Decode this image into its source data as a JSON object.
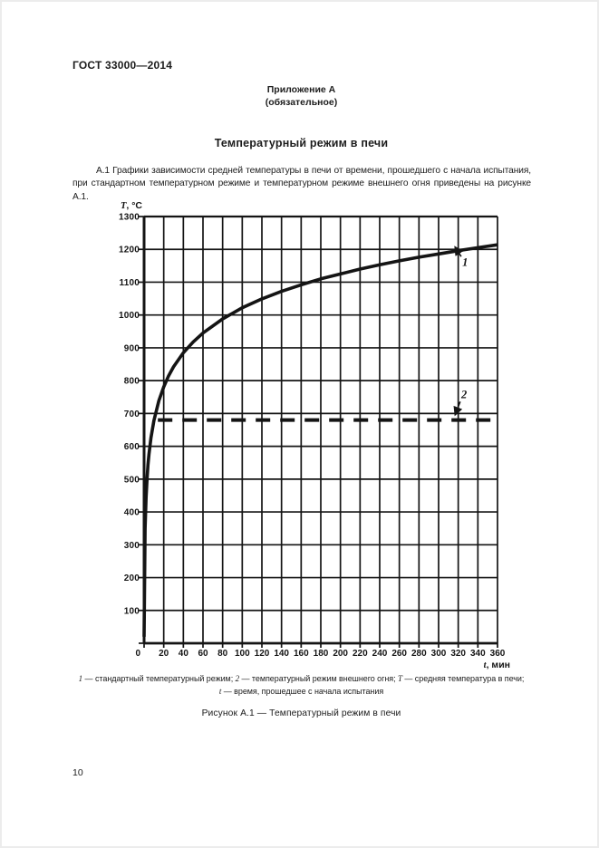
{
  "page": {
    "header": "ГОСТ 33000—2014",
    "annex_title": "Приложение А",
    "annex_subtitle": "(обязательное)",
    "section_title": "Температурный режим в печи",
    "paragraph": "А.1  Графики зависимости средней температуры в печи от времени, прошедшего с начала испытания, при стандартном температурном режиме и температурном режиме внешнего огня приведены на рисунке А.1.",
    "page_number": "10"
  },
  "figure": {
    "legend_line1": [
      {
        "t": "1",
        "i": true
      },
      {
        "t": " — стандартный температурный режим; ",
        "i": false
      },
      {
        "t": "2",
        "i": true
      },
      {
        "t": " — температурный режим внешнего огня; ",
        "i": false
      },
      {
        "t": "T",
        "i": true
      },
      {
        "t": " — средняя температура в печи;",
        "i": false
      }
    ],
    "legend_line2": [
      {
        "t": "t",
        "i": true
      },
      {
        "t": " — время, прошедшее с начала испытания",
        "i": false
      }
    ],
    "caption": "Рисунок А.1 — Температурный режим в печи"
  },
  "chart_data": {
    "type": "line",
    "title": "Температурный режим в печи",
    "xlabel": "t, мин",
    "ylabel": "T, °C",
    "xlim": [
      0,
      360
    ],
    "ylim": [
      0,
      1300
    ],
    "x_ticks": [
      0,
      20,
      40,
      60,
      80,
      100,
      120,
      140,
      160,
      180,
      200,
      220,
      240,
      260,
      280,
      300,
      320,
      340,
      360
    ],
    "y_ticks": [
      0,
      100,
      200,
      300,
      400,
      500,
      600,
      700,
      800,
      900,
      1000,
      1100,
      1200,
      1300
    ],
    "grid": true,
    "legend_position": "caption-below",
    "line_color": "#141414",
    "series": [
      {
        "id": "1",
        "name": "стандартный температурный режим",
        "style": "solid",
        "points": [
          [
            0,
            20
          ],
          [
            1,
            349
          ],
          [
            2,
            444
          ],
          [
            3,
            502
          ],
          [
            4,
            544
          ],
          [
            5,
            576
          ],
          [
            7,
            626
          ],
          [
            10,
            678
          ],
          [
            15,
            739
          ],
          [
            20,
            781
          ],
          [
            25,
            815
          ],
          [
            30,
            842
          ],
          [
            40,
            885
          ],
          [
            50,
            918
          ],
          [
            60,
            945
          ],
          [
            80,
            988
          ],
          [
            100,
            1022
          ],
          [
            120,
            1049
          ],
          [
            140,
            1072
          ],
          [
            160,
            1092
          ],
          [
            180,
            1110
          ],
          [
            200,
            1125
          ],
          [
            220,
            1140
          ],
          [
            240,
            1153
          ],
          [
            260,
            1165
          ],
          [
            280,
            1176
          ],
          [
            300,
            1186
          ],
          [
            320,
            1196
          ],
          [
            340,
            1205
          ],
          [
            360,
            1214
          ]
        ]
      },
      {
        "id": "2",
        "name": "температурный режим внешнего огня",
        "style": "dashed",
        "points": [
          [
            14,
            680
          ],
          [
            360,
            680
          ]
        ]
      }
    ],
    "annotations": [
      {
        "label": "1",
        "label_pos": [
          327,
          1160
        ],
        "arrow_from": [
          323,
          1178
        ],
        "arrow_to": [
          317,
          1206
        ]
      },
      {
        "label": "2",
        "label_pos": [
          326,
          757
        ],
        "arrow_from": [
          322,
          736
        ],
        "arrow_to": [
          317,
          697
        ]
      }
    ]
  }
}
